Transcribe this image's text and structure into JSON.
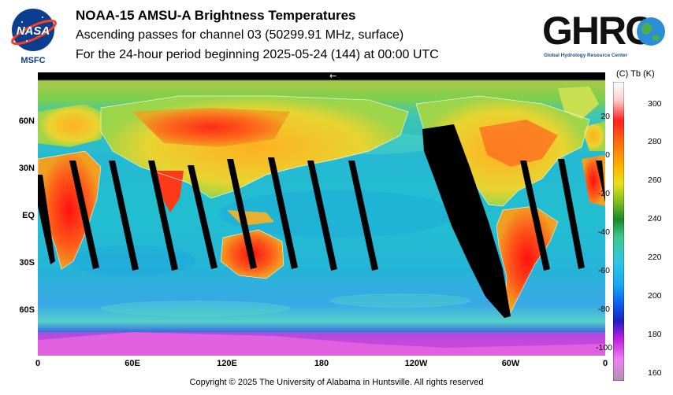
{
  "header": {
    "title": "NOAA-15 AMSU-A Brightness Temperatures",
    "subtitle1": "Ascending passes for channel 03 (50299.91 MHz, surface)",
    "subtitle2": "For the 24-hour period beginning 2025-05-24 (144) at 00:00 UTC"
  },
  "nasa_logo": {
    "text": "NASA",
    "caption": "MSFC"
  },
  "ghrc_logo": {
    "text": "GHRC",
    "caption": "Global Hydrology Resource Center"
  },
  "map": {
    "lat_labels": [
      "60N",
      "30N",
      "EQ",
      "30S",
      "60S"
    ],
    "lon_labels": [
      "0",
      "60E",
      "120E",
      "180",
      "120W",
      "60W",
      "0"
    ],
    "arrow_glyph": "←"
  },
  "colorbar": {
    "header": "(C)  Tb  (K)",
    "celsius_ticks": [
      "20",
      "0",
      "-20",
      "-40",
      "-60",
      "-80",
      "-100"
    ],
    "kelvin_ticks": [
      "300",
      "280",
      "260",
      "240",
      "220",
      "200",
      "180",
      "160"
    ]
  },
  "footer": {
    "copyright": "Copyright © 2025 The University of Alabama in Huntsville.  All rights reserved"
  },
  "colors": {
    "ocean": "#1fb8d6",
    "land_hot": "#e8321a",
    "ice": "#c838d8",
    "gap": "#000000"
  }
}
